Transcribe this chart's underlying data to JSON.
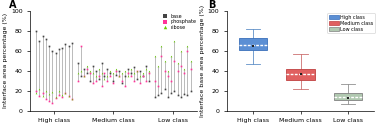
{
  "panel_A": {
    "title": "A",
    "ylabel": "Interface area percentage (%)",
    "xlabel_ticks": [
      "High class",
      "Medium class",
      "Low class"
    ],
    "ylim": [
      0,
      100
    ],
    "yticks": [
      0,
      20,
      40,
      60,
      80,
      100
    ],
    "high_class_base": [
      80,
      70,
      75,
      72,
      65,
      60,
      58,
      62,
      63,
      67,
      65,
      68
    ],
    "high_class_phosphate": [
      20,
      15,
      18,
      12,
      10,
      8,
      13,
      16,
      14,
      18,
      15,
      12
    ],
    "high_class_ribose": [
      18,
      22,
      15,
      20,
      17,
      19,
      14,
      20,
      16,
      18,
      15,
      12
    ],
    "medium_class_base": [
      48,
      35,
      42,
      38,
      30,
      45,
      40,
      32,
      48,
      35,
      42,
      38,
      30,
      36,
      40,
      28,
      35,
      42,
      38,
      44,
      32,
      40,
      35,
      45,
      30
    ],
    "medium_class_phosphate": [
      30,
      65,
      35,
      42,
      38,
      28,
      30,
      35,
      25,
      38,
      30,
      35,
      28,
      40,
      35,
      30,
      25,
      38,
      35,
      30,
      40,
      28,
      35,
      30,
      38
    ],
    "medium_class_ribose": [
      38,
      40,
      35,
      45,
      40,
      38,
      35,
      42,
      38,
      32,
      35,
      40,
      38,
      42,
      35,
      38,
      40,
      35,
      42,
      38,
      40,
      35,
      38,
      42,
      40
    ],
    "low_class_base": [
      14,
      16,
      18,
      22,
      14,
      18,
      20,
      16,
      14,
      17,
      16,
      20
    ],
    "low_class_phosphate": [
      30,
      25,
      55,
      40,
      35,
      30,
      50,
      40,
      45,
      38,
      60,
      42
    ],
    "low_class_ribose": [
      55,
      45,
      65,
      50,
      40,
      55,
      70,
      48,
      60,
      42,
      65,
      50
    ],
    "base_color": "#444444",
    "phosphate_color": "#ff3399",
    "ribose_color": "#66cc00"
  },
  "panel_B": {
    "title": "B",
    "ylabel": "Interface base area percentage (%)",
    "xlabel_ticks": [
      "High class",
      "Medium class",
      "Low class"
    ],
    "ylim": [
      0,
      100
    ],
    "yticks": [
      0,
      20,
      40,
      60,
      80,
      100
    ],
    "high_class": {
      "whisker_low": 47,
      "q1": 61,
      "median": 66,
      "mean": 65,
      "q3": 73,
      "whisker_high": 82,
      "face_color": "#5b8fd4",
      "edge_color": "#3a6fba",
      "whisker_color": "#6090c8"
    },
    "medium_class": {
      "whisker_low": 22,
      "q1": 31,
      "median": 37,
      "mean": 37,
      "q3": 42,
      "whisker_high": 57,
      "face_color": "#e06060",
      "edge_color": "#c04040",
      "whisker_color": "#cc7070"
    },
    "low_class": {
      "whisker_low": 7,
      "q1": 11,
      "median": 14,
      "mean": 13,
      "q3": 18,
      "whisker_high": 27,
      "face_color": "#b0c8b0",
      "edge_color": "#808080",
      "whisker_color": "#909090"
    },
    "legend_labels": [
      "High class",
      "Medium class",
      "Low class"
    ],
    "legend_face_colors": [
      "#5b8fd4",
      "#e06060",
      "#b0c8b0"
    ],
    "legend_edge_colors": [
      "#3a6fba",
      "#c04040",
      "#808080"
    ]
  }
}
